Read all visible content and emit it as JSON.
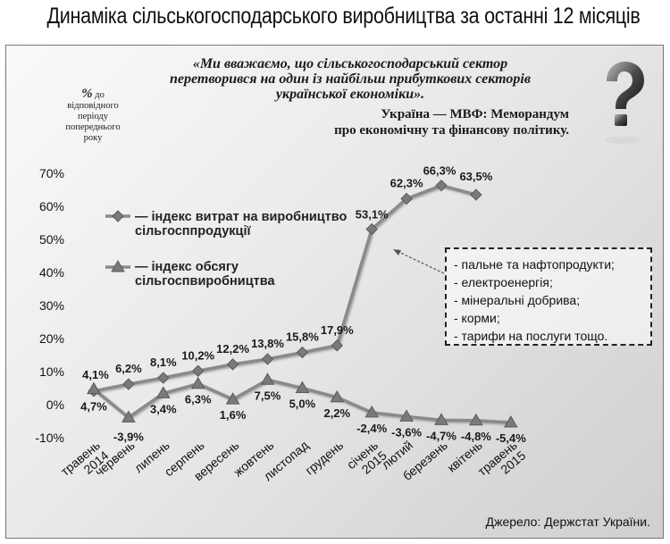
{
  "title": "Динаміка сільськогосподарського виробництва за останні 12 місяців",
  "quote": {
    "text": "«Ми вважаємо, що сільськогосподарський сектор перетворився на один із найбільш прибуткових секторів української економіки».",
    "source_line1": "Україна — МВФ: Меморандум",
    "source_line2": "про економічну та фінансову політику."
  },
  "y_axis_title": {
    "symbol": "%",
    "rest": " до відповідного періоду попереднього року"
  },
  "question_icon": "question-mark-icon",
  "cost_note": {
    "items": [
      "- пальне та нафтопродукти;",
      "- електроенергія;",
      "- мінеральні добрива;",
      "- корми;",
      "- тарифи на послуги тощо."
    ]
  },
  "source": "Джерело: Держстат України.",
  "colors": {
    "series": "#8a8a8a",
    "marker": "#7a7a7a",
    "text": "#1a1a1a"
  },
  "chart_data": {
    "type": "line",
    "categories": [
      "травень 2014",
      "червень",
      "липень",
      "серпень",
      "вересень",
      "жовтень",
      "листопад",
      "грудень",
      "січень 2015",
      "лютий",
      "березень",
      "квітень",
      "травень 2015"
    ],
    "series": [
      {
        "name": "— індекс витрат на виробництво сільгосппродукції",
        "marker": "diamond",
        "values": [
          4.1,
          6.2,
          8.1,
          10.2,
          12.2,
          13.8,
          15.8,
          17.9,
          53.1,
          62.3,
          66.3,
          63.5,
          null
        ],
        "labels": [
          "4,1%",
          "6,2%",
          "8,1%",
          "10,2%",
          "12,2%",
          "13,8%",
          "15,8%",
          "17,9%",
          "53,1%",
          "62,3%",
          "66,3%",
          "63,5%",
          null
        ]
      },
      {
        "name": "— індекс обсягу сільгоспвиробництва",
        "marker": "triangle",
        "values": [
          4.7,
          -3.9,
          3.4,
          6.3,
          1.6,
          7.5,
          5.0,
          2.2,
          -2.4,
          -3.6,
          -4.7,
          -4.8,
          -5.4
        ],
        "labels": [
          "4,7%",
          "-3,9%",
          "3,4%",
          "6,3%",
          "1,6%",
          "7,5%",
          "5,0%",
          "2,2%",
          "-2,4%",
          "-3,6%",
          "-4,7%",
          "-4,8%",
          "-5,4%"
        ]
      }
    ],
    "yticks": [
      "70%",
      "60%",
      "50%",
      "40%",
      "30%",
      "20%",
      "10%",
      "0%",
      "-10%"
    ],
    "ytick_values": [
      70,
      60,
      50,
      40,
      30,
      20,
      10,
      0,
      -10
    ],
    "ylim": [
      -10,
      70
    ],
    "grid": false,
    "legend": "left"
  }
}
